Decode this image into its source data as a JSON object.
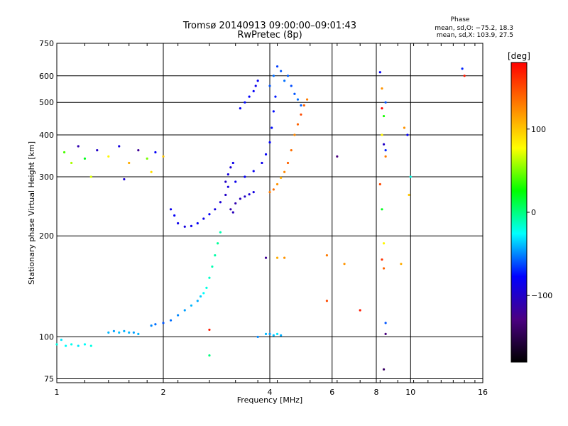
{
  "header": {
    "title_line1": "Tromsø 20140913 09:00:00–09:01:43",
    "title_line2": "RwPretec (8p)",
    "phase_title": "Phase",
    "phase_o": "mean, sd,O: −75.2, 18.3",
    "phase_x": "mean, sd,X: 103.9, 27.5"
  },
  "chart_data": {
    "type": "scatter",
    "title": "Tromsø 20140913 09:00:00–09:01:43",
    "subtitle": "RwPretec (8p)",
    "xlabel": "Frequency [MHz]",
    "ylabel": "Stationary phase Virtual Height [km]",
    "x_scale": "log2",
    "y_scale": "log",
    "xlim": [
      1,
      16
    ],
    "ylim": [
      73,
      750
    ],
    "x_ticks": [
      1,
      2,
      4,
      6,
      8,
      10,
      16
    ],
    "x_tick_labels": [
      "1",
      "2",
      "4",
      "6",
      "8",
      "10",
      "16"
    ],
    "y_ticks": [
      75,
      100,
      200,
      300,
      400,
      500,
      600,
      750
    ],
    "y_tick_labels": [
      "75",
      "100",
      "200",
      "300",
      "400",
      "500",
      "600",
      "750"
    ],
    "grid": true,
    "colorbar": {
      "label": "[deg]",
      "range": [
        -180,
        180
      ],
      "ticks": [
        100,
        0,
        -100
      ],
      "tick_labels": [
        "100",
        "0",
        "−100"
      ],
      "colors": [
        "#000000",
        "#4b0082",
        "#0000ff",
        "#00ffff",
        "#00ff00",
        "#ffff00",
        "#ff7f00",
        "#ff0000"
      ]
    },
    "series": [
      {
        "points": [
          [
            1,
            95,
            -20
          ],
          [
            1.03,
            98,
            -30
          ],
          [
            1.06,
            94,
            -25
          ],
          [
            1.1,
            95,
            -22
          ],
          [
            1.15,
            94,
            -30
          ],
          [
            1.2,
            95,
            -25
          ],
          [
            1.25,
            94,
            -20
          ],
          [
            1.4,
            103,
            -40
          ],
          [
            1.45,
            104,
            -45
          ],
          [
            1.5,
            103,
            -38
          ],
          [
            1.55,
            104,
            -42
          ],
          [
            1.6,
            103,
            -40
          ],
          [
            1.65,
            103,
            -45
          ],
          [
            1.7,
            102,
            -40
          ]
        ]
      },
      {
        "points": [
          [
            1.85,
            108,
            -50
          ],
          [
            1.9,
            109,
            -55
          ],
          [
            2.0,
            110,
            -60
          ],
          [
            2.1,
            112,
            -55
          ],
          [
            2.2,
            116,
            -50
          ],
          [
            2.3,
            120,
            -45
          ],
          [
            2.4,
            124,
            -40
          ],
          [
            2.5,
            128,
            -42
          ],
          [
            2.55,
            132,
            -35
          ],
          [
            2.6,
            135,
            -25
          ],
          [
            2.65,
            140,
            -20
          ],
          [
            2.7,
            150,
            -15
          ],
          [
            2.75,
            162,
            -10
          ],
          [
            2.8,
            175,
            -8
          ],
          [
            2.85,
            190,
            -5
          ],
          [
            2.9,
            205,
            -10
          ]
        ]
      },
      {
        "points": [
          [
            2.1,
            240,
            -85
          ],
          [
            2.15,
            230,
            -80
          ],
          [
            2.2,
            218,
            -85
          ],
          [
            2.3,
            213,
            -90
          ],
          [
            2.4,
            214,
            -85
          ],
          [
            2.5,
            218,
            -80
          ],
          [
            2.6,
            225,
            -85
          ],
          [
            2.7,
            232,
            -80
          ],
          [
            2.8,
            240,
            -90
          ],
          [
            2.9,
            252,
            -95
          ],
          [
            3.0,
            265,
            -100
          ],
          [
            3.05,
            280,
            -90
          ],
          [
            3.2,
            290,
            -85
          ],
          [
            3.4,
            300,
            -80
          ],
          [
            3.6,
            312,
            -82
          ],
          [
            3.8,
            330,
            -85
          ],
          [
            3.9,
            350,
            -80
          ],
          [
            4.0,
            380,
            -78
          ],
          [
            4.05,
            420,
            -75
          ],
          [
            4.1,
            470,
            -75
          ],
          [
            4.15,
            520,
            -72
          ]
        ]
      },
      {
        "points": [
          [
            3.1,
            240,
            -110
          ],
          [
            3.15,
            235,
            -105
          ],
          [
            3.2,
            250,
            -110
          ],
          [
            3.3,
            258,
            -105
          ],
          [
            3.4,
            262,
            -100
          ],
          [
            3.5,
            266,
            -95
          ],
          [
            3.6,
            270,
            -90
          ]
        ]
      },
      {
        "points": [
          [
            3.1,
            320,
            -95
          ],
          [
            3.05,
            305,
            -90
          ],
          [
            3.0,
            290,
            -100
          ],
          [
            3.15,
            330,
            -85
          ]
        ]
      },
      {
        "points": [
          [
            3.3,
            480,
            -80
          ],
          [
            3.4,
            500,
            -75
          ],
          [
            3.5,
            520,
            -78
          ],
          [
            3.6,
            540,
            -80
          ],
          [
            3.65,
            560,
            -85
          ],
          [
            3.7,
            580,
            -80
          ]
        ]
      },
      {
        "points": [
          [
            4.0,
            270,
            130
          ],
          [
            4.1,
            275,
            135
          ],
          [
            4.2,
            285,
            120
          ],
          [
            4.3,
            298,
            110
          ],
          [
            4.4,
            310,
            125
          ],
          [
            4.5,
            330,
            140
          ],
          [
            4.6,
            360,
            135
          ],
          [
            4.7,
            400,
            125
          ],
          [
            4.8,
            430,
            140
          ],
          [
            4.9,
            460,
            150
          ],
          [
            5.0,
            490,
            140
          ],
          [
            5.1,
            510,
            130
          ]
        ]
      },
      {
        "points": [
          [
            4.0,
            560,
            -60
          ],
          [
            4.1,
            600,
            -55
          ],
          [
            4.2,
            640,
            -65
          ],
          [
            4.3,
            620,
            -60
          ],
          [
            4.4,
            580,
            -55
          ],
          [
            4.5,
            600,
            -58
          ],
          [
            4.6,
            560,
            -62
          ],
          [
            4.7,
            530,
            -60
          ],
          [
            4.8,
            510,
            -55
          ],
          [
            4.9,
            490,
            -58
          ]
        ]
      },
      {
        "points": [
          [
            1.05,
            355,
            40
          ],
          [
            1.1,
            330,
            60
          ],
          [
            1.15,
            370,
            -110
          ],
          [
            1.2,
            340,
            20
          ],
          [
            1.3,
            360,
            -100
          ],
          [
            1.4,
            345,
            80
          ],
          [
            1.5,
            370,
            -90
          ],
          [
            1.6,
            330,
            110
          ],
          [
            1.7,
            360,
            -120
          ],
          [
            1.8,
            340,
            50
          ],
          [
            1.9,
            355,
            -80
          ],
          [
            2.0,
            345,
            100
          ],
          [
            1.25,
            300,
            70
          ],
          [
            1.55,
            295,
            -95
          ],
          [
            1.85,
            310,
            90
          ]
        ]
      },
      {
        "points": [
          [
            3.9,
            102,
            -40
          ],
          [
            4.0,
            102,
            -45
          ],
          [
            4.1,
            101,
            -38
          ],
          [
            4.2,
            102,
            -30
          ],
          [
            4.3,
            101,
            -42
          ],
          [
            3.7,
            100,
            -50
          ],
          [
            3.9,
            172,
            -120
          ],
          [
            4.2,
            172,
            110
          ],
          [
            4.4,
            172,
            120
          ]
        ]
      },
      {
        "points": [
          [
            2.7,
            88,
            0
          ],
          [
            2.7,
            105,
            170
          ],
          [
            5.8,
            175,
            130
          ],
          [
            5.8,
            128,
            150
          ],
          [
            6.2,
            345,
            -130
          ],
          [
            6.5,
            165,
            120
          ],
          [
            7.2,
            120,
            170
          ],
          [
            8.2,
            615,
            -80
          ],
          [
            8.3,
            550,
            120
          ],
          [
            8.5,
            500,
            -60
          ],
          [
            8.3,
            480,
            180
          ],
          [
            8.4,
            455,
            30
          ],
          [
            8.3,
            400,
            80
          ],
          [
            8.4,
            375,
            -100
          ],
          [
            8.5,
            360,
            -70
          ],
          [
            8.5,
            345,
            130
          ],
          [
            8.2,
            285,
            150
          ],
          [
            8.3,
            240,
            20
          ],
          [
            8.4,
            190,
            80
          ],
          [
            8.3,
            170,
            160
          ],
          [
            8.4,
            160,
            140
          ],
          [
            8.5,
            110,
            -60
          ],
          [
            8.5,
            102,
            -130
          ],
          [
            8.4,
            80,
            -140
          ],
          [
            9.4,
            165,
            110
          ],
          [
            9.6,
            420,
            120
          ],
          [
            9.8,
            400,
            -80
          ],
          [
            10,
            300,
            -20
          ],
          [
            9.9,
            265,
            100
          ],
          [
            14,
            630,
            -70
          ],
          [
            14.2,
            600,
            170
          ]
        ]
      }
    ]
  }
}
